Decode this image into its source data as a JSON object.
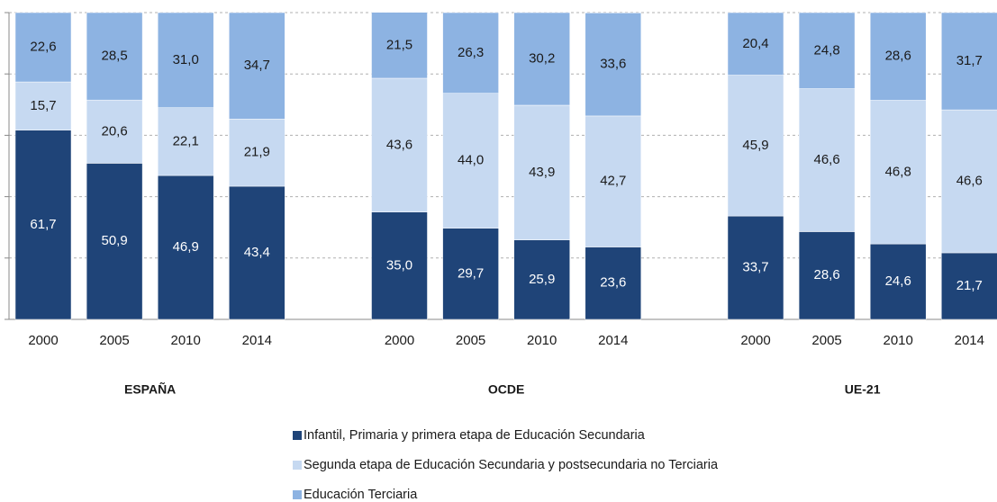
{
  "chart_data": {
    "type": "stacked_bar",
    "categories": [
      "2000",
      "2005",
      "2010",
      "2014",
      null,
      "2000",
      "2005",
      "2010",
      "2014",
      null,
      "2000",
      "2005",
      "2010",
      "2014"
    ],
    "groups": [
      "ESPAÑA",
      "OCDE",
      "UE-21"
    ],
    "series": [
      {
        "name": "Infantil, Primaria y primera etapa de Educación Secundaria",
        "color": "#1f4478",
        "label_color": "#ffffff",
        "values": [
          61.7,
          50.9,
          46.9,
          43.4,
          null,
          35.0,
          29.7,
          25.9,
          23.6,
          null,
          33.7,
          28.6,
          24.6,
          21.7
        ],
        "value_labels": [
          "61,7",
          "50,9",
          "46,9",
          "43,4",
          null,
          "35,0",
          "29,7",
          "25,9",
          "23,6",
          null,
          "33,7",
          "28,6",
          "24,6",
          "21,7"
        ]
      },
      {
        "name": "Segunda etapa de Educación Secundaria y postsecundaria no Terciaria",
        "color": "#c6d9f1",
        "label_color": "#1a1a1a",
        "values": [
          15.7,
          20.6,
          22.1,
          21.9,
          null,
          43.6,
          44.0,
          43.9,
          42.7,
          null,
          45.9,
          46.6,
          46.8,
          46.6
        ],
        "value_labels": [
          "15,7",
          "20,6",
          "22,1",
          "21,9",
          null,
          "43,6",
          "44,0",
          "43,9",
          "42,7",
          null,
          "45,9",
          "46,6",
          "46,8",
          "46,6"
        ]
      },
      {
        "name": "Educación Terciaria",
        "color": "#8db3e2",
        "label_color": "#1a1a1a",
        "values": [
          22.6,
          28.5,
          31.0,
          34.7,
          null,
          21.5,
          26.3,
          30.2,
          33.6,
          null,
          20.4,
          24.8,
          28.6,
          31.7
        ],
        "value_labels": [
          "22,6",
          "28,5",
          "31,0",
          "34,7",
          null,
          "21,5",
          "26,3",
          "30,2",
          "33,6",
          null,
          "20,4",
          "24,8",
          "28,6",
          "31,7"
        ]
      }
    ],
    "ylim": [
      0,
      100
    ],
    "yticks": [
      0,
      20,
      40,
      60,
      80,
      100
    ],
    "grid": true
  }
}
